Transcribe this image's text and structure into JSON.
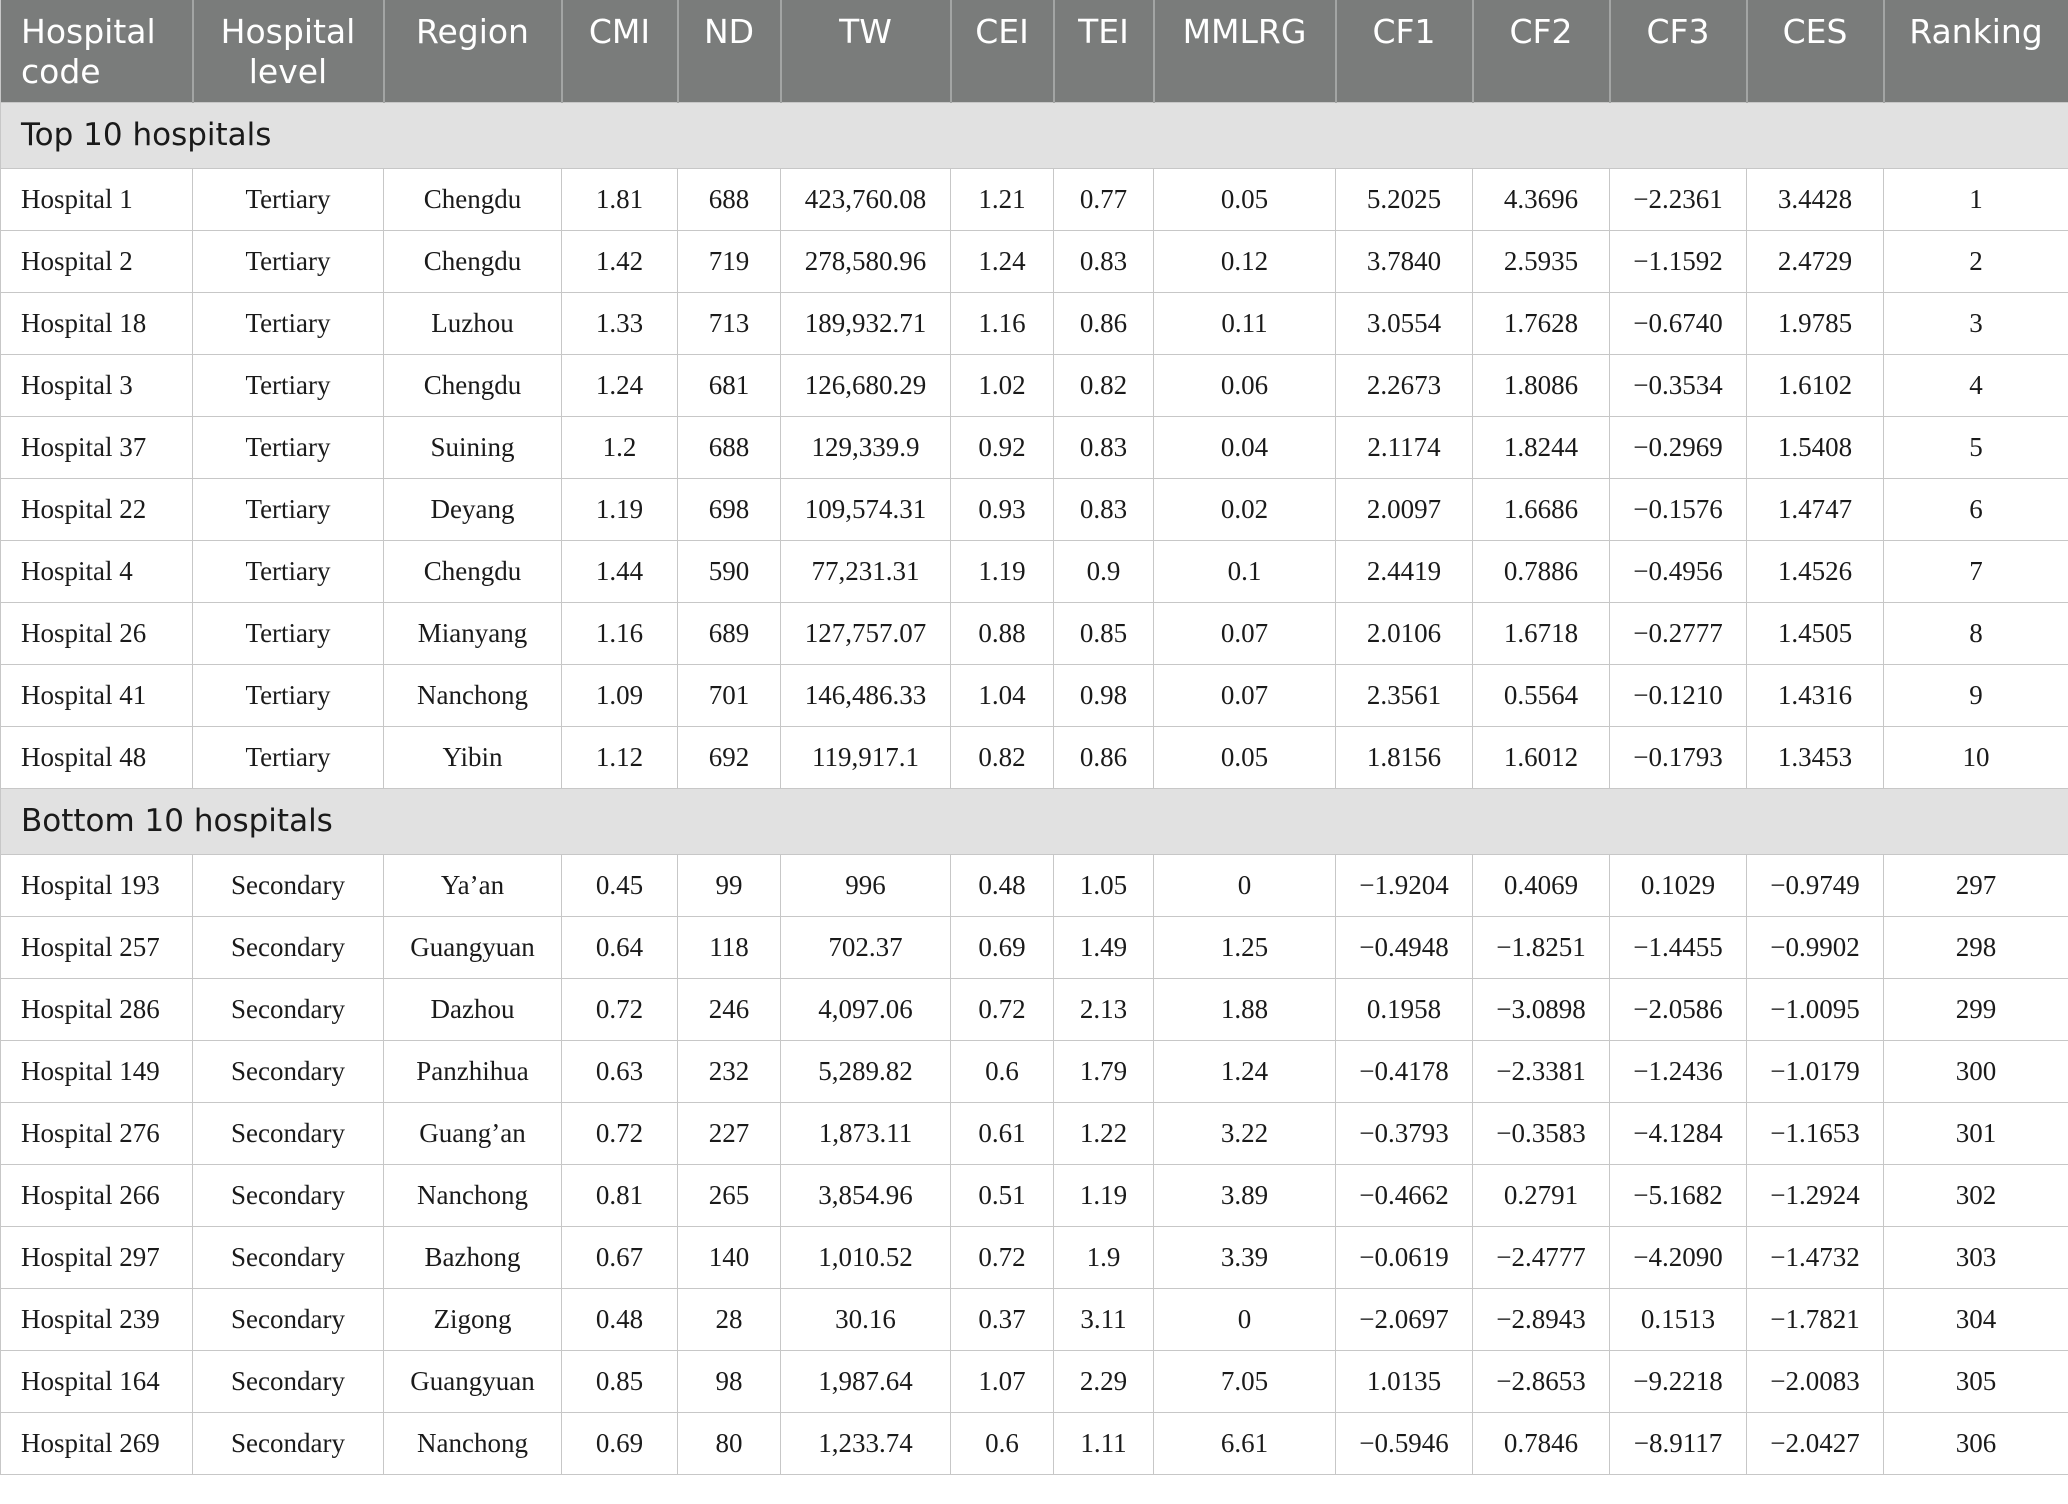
{
  "headers": [
    "Hospital code",
    "Hospital level",
    "Region",
    "CMI",
    "ND",
    "TW",
    "CEI",
    "TEI",
    "MMLRG",
    "CF1",
    "CF2",
    "CF3",
    "CES",
    "Ranking"
  ],
  "sections": [
    {
      "title": "Top 10 hospitals",
      "rows": [
        [
          "Hospital 1",
          "Tertiary",
          "Chengdu",
          "1.81",
          "688",
          "423,760.08",
          "1.21",
          "0.77",
          "0.05",
          "5.2025",
          "4.3696",
          "−2.2361",
          "3.4428",
          "1"
        ],
        [
          "Hospital 2",
          "Tertiary",
          "Chengdu",
          "1.42",
          "719",
          "278,580.96",
          "1.24",
          "0.83",
          "0.12",
          "3.7840",
          "2.5935",
          "−1.1592",
          "2.4729",
          "2"
        ],
        [
          "Hospital 18",
          "Tertiary",
          "Luzhou",
          "1.33",
          "713",
          "189,932.71",
          "1.16",
          "0.86",
          "0.11",
          "3.0554",
          "1.7628",
          "−0.6740",
          "1.9785",
          "3"
        ],
        [
          "Hospital 3",
          "Tertiary",
          "Chengdu",
          "1.24",
          "681",
          "126,680.29",
          "1.02",
          "0.82",
          "0.06",
          "2.2673",
          "1.8086",
          "−0.3534",
          "1.6102",
          "4"
        ],
        [
          "Hospital 37",
          "Tertiary",
          "Suining",
          "1.2",
          "688",
          "129,339.9",
          "0.92",
          "0.83",
          "0.04",
          "2.1174",
          "1.8244",
          "−0.2969",
          "1.5408",
          "5"
        ],
        [
          "Hospital 22",
          "Tertiary",
          "Deyang",
          "1.19",
          "698",
          "109,574.31",
          "0.93",
          "0.83",
          "0.02",
          "2.0097",
          "1.6686",
          "−0.1576",
          "1.4747",
          "6"
        ],
        [
          "Hospital 4",
          "Tertiary",
          "Chengdu",
          "1.44",
          "590",
          "77,231.31",
          "1.19",
          "0.9",
          "0.1",
          "2.4419",
          "0.7886",
          "−0.4956",
          "1.4526",
          "7"
        ],
        [
          "Hospital 26",
          "Tertiary",
          "Mianyang",
          "1.16",
          "689",
          "127,757.07",
          "0.88",
          "0.85",
          "0.07",
          "2.0106",
          "1.6718",
          "−0.2777",
          "1.4505",
          "8"
        ],
        [
          "Hospital 41",
          "Tertiary",
          "Nanchong",
          "1.09",
          "701",
          "146,486.33",
          "1.04",
          "0.98",
          "0.07",
          "2.3561",
          "0.5564",
          "−0.1210",
          "1.4316",
          "9"
        ],
        [
          "Hospital 48",
          "Tertiary",
          "Yibin",
          "1.12",
          "692",
          "119,917.1",
          "0.82",
          "0.86",
          "0.05",
          "1.8156",
          "1.6012",
          "−0.1793",
          "1.3453",
          "10"
        ]
      ]
    },
    {
      "title": "Bottom 10 hospitals",
      "rows": [
        [
          "Hospital 193",
          "Secondary",
          "Ya’an",
          "0.45",
          "99",
          "996",
          "0.48",
          "1.05",
          "0",
          "−1.9204",
          "0.4069",
          "0.1029",
          "−0.9749",
          "297"
        ],
        [
          "Hospital 257",
          "Secondary",
          "Guangyuan",
          "0.64",
          "118",
          "702.37",
          "0.69",
          "1.49",
          "1.25",
          "−0.4948",
          "−1.8251",
          "−1.4455",
          "−0.9902",
          "298"
        ],
        [
          "Hospital 286",
          "Secondary",
          "Dazhou",
          "0.72",
          "246",
          "4,097.06",
          "0.72",
          "2.13",
          "1.88",
          "0.1958",
          "−3.0898",
          "−2.0586",
          "−1.0095",
          "299"
        ],
        [
          "Hospital 149",
          "Secondary",
          "Panzhihua",
          "0.63",
          "232",
          "5,289.82",
          "0.6",
          "1.79",
          "1.24",
          "−0.4178",
          "−2.3381",
          "−1.2436",
          "−1.0179",
          "300"
        ],
        [
          "Hospital 276",
          "Secondary",
          "Guang’an",
          "0.72",
          "227",
          "1,873.11",
          "0.61",
          "1.22",
          "3.22",
          "−0.3793",
          "−0.3583",
          "−4.1284",
          "−1.1653",
          "301"
        ],
        [
          "Hospital 266",
          "Secondary",
          "Nanchong",
          "0.81",
          "265",
          "3,854.96",
          "0.51",
          "1.19",
          "3.89",
          "−0.4662",
          "0.2791",
          "−5.1682",
          "−1.2924",
          "302"
        ],
        [
          "Hospital 297",
          "Secondary",
          "Bazhong",
          "0.67",
          "140",
          "1,010.52",
          "0.72",
          "1.9",
          "3.39",
          "−0.0619",
          "−2.4777",
          "−4.2090",
          "−1.4732",
          "303"
        ],
        [
          "Hospital 239",
          "Secondary",
          "Zigong",
          "0.48",
          "28",
          "30.16",
          "0.37",
          "3.11",
          "0",
          "−2.0697",
          "−2.8943",
          "0.1513",
          "−1.7821",
          "304"
        ],
        [
          "Hospital 164",
          "Secondary",
          "Guangyuan",
          "0.85",
          "98",
          "1,987.64",
          "1.07",
          "2.29",
          "7.05",
          "1.0135",
          "−2.8653",
          "−9.2218",
          "−2.0083",
          "305"
        ],
        [
          "Hospital 269",
          "Secondary",
          "Nanchong",
          "0.69",
          "80",
          "1,233.74",
          "0.6",
          "1.11",
          "6.61",
          "−0.5946",
          "0.7846",
          "−8.9117",
          "−2.0427",
          "306"
        ]
      ]
    }
  ]
}
